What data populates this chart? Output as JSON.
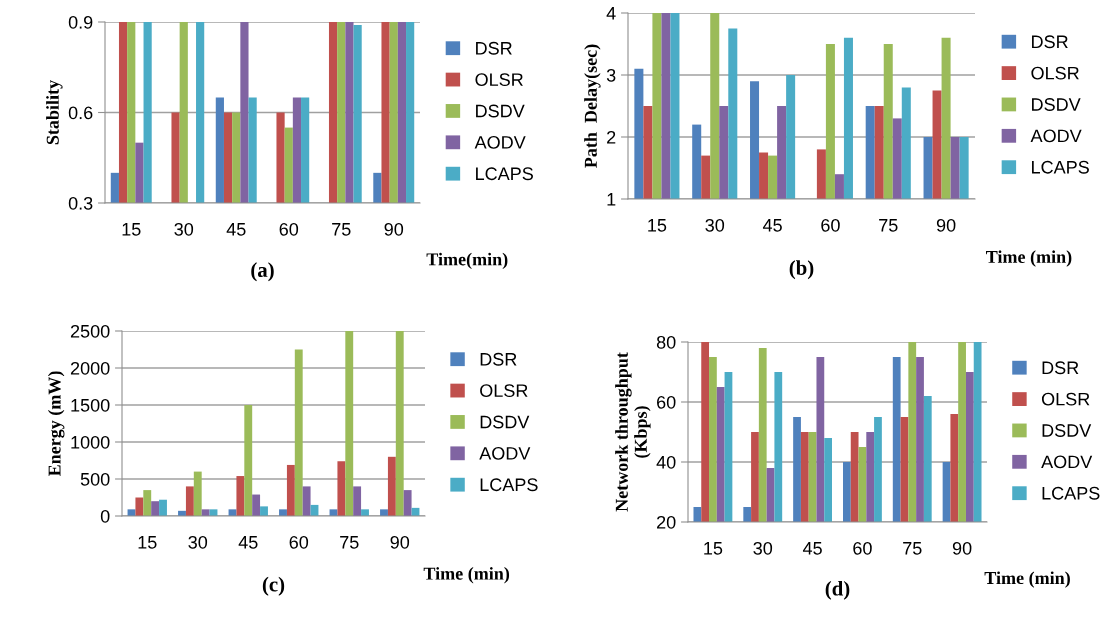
{
  "chart_data": [
    {
      "type": "bar",
      "ylabel": "Stability",
      "xlabel": "Time(min)",
      "annotations": [
        "(a)"
      ],
      "categories": [
        "15",
        "30",
        "45",
        "60",
        "75",
        "90"
      ],
      "ylim": [
        0.3,
        0.9
      ],
      "yticks": [
        0.3,
        0.6,
        0.9
      ],
      "grid": "y",
      "legend": "right",
      "series": [
        {
          "name": "DSR",
          "color": "#4f81bd",
          "values": [
            0.4,
            null,
            0.65,
            null,
            null,
            0.4
          ]
        },
        {
          "name": "OLSR",
          "color": "#c0504d",
          "values": [
            0.9,
            0.6,
            0.6,
            0.6,
            0.9,
            0.9
          ]
        },
        {
          "name": "DSDV",
          "color": "#9bbb59",
          "values": [
            0.9,
            0.9,
            0.6,
            0.55,
            0.9,
            0.9
          ]
        },
        {
          "name": "AODV",
          "color": "#8064a2",
          "values": [
            0.5,
            null,
            0.9,
            0.65,
            0.9,
            0.9
          ]
        },
        {
          "name": "LCAPS",
          "color": "#4bacc6",
          "values": [
            0.9,
            0.9,
            0.65,
            0.65,
            0.89,
            0.9
          ]
        }
      ]
    },
    {
      "type": "bar",
      "ylabel": "Path  Delay(sec)",
      "xlabel": "Time (min)",
      "annotations": [
        "(b)"
      ],
      "categories": [
        "15",
        "30",
        "45",
        "60",
        "75",
        "90"
      ],
      "ylim": [
        1,
        4
      ],
      "yticks": [
        1,
        2,
        3,
        4
      ],
      "grid": "y",
      "legend": "right",
      "series": [
        {
          "name": "DSR",
          "color": "#4f81bd",
          "values": [
            3.1,
            2.2,
            2.9,
            null,
            2.5,
            2.0
          ]
        },
        {
          "name": "OLSR",
          "color": "#c0504d",
          "values": [
            2.5,
            1.7,
            1.75,
            1.8,
            2.5,
            2.75
          ]
        },
        {
          "name": "DSDV",
          "color": "#9bbb59",
          "values": [
            4,
            4,
            1.7,
            3.5,
            3.5,
            3.6
          ]
        },
        {
          "name": "AODV",
          "color": "#8064a2",
          "values": [
            4,
            2.5,
            2.5,
            1.4,
            2.3,
            2.0
          ]
        },
        {
          "name": "LCAPS",
          "color": "#4bacc6",
          "values": [
            4,
            3.75,
            3.0,
            3.6,
            2.8,
            2.0
          ]
        }
      ]
    },
    {
      "type": "bar",
      "ylabel": "Energy (mW)",
      "xlabel": "Time (min)",
      "annotations": [
        "(c)"
      ],
      "categories": [
        "15",
        "30",
        "45",
        "60",
        "75",
        "90"
      ],
      "ylim": [
        0,
        2500
      ],
      "yticks": [
        0,
        500,
        1000,
        1500,
        2000,
        2500
      ],
      "grid": "y",
      "legend": "right",
      "series": [
        {
          "name": "DSR",
          "color": "#4f81bd",
          "values": [
            90,
            70,
            90,
            90,
            90,
            90
          ]
        },
        {
          "name": "OLSR",
          "color": "#c0504d",
          "values": [
            250,
            400,
            540,
            690,
            740,
            800
          ]
        },
        {
          "name": "DSDV",
          "color": "#9bbb59",
          "values": [
            350,
            600,
            1500,
            2250,
            2500,
            2500
          ]
        },
        {
          "name": "AODV",
          "color": "#8064a2",
          "values": [
            200,
            90,
            290,
            400,
            400,
            350
          ]
        },
        {
          "name": "LCAPS",
          "color": "#4bacc6",
          "values": [
            220,
            90,
            130,
            150,
            90,
            110
          ]
        }
      ]
    },
    {
      "type": "bar",
      "ylabel": "Network throughput\n(Kbps)",
      "xlabel": "Time (min)",
      "annotations": [
        "(d)"
      ],
      "categories": [
        "15",
        "30",
        "45",
        "60",
        "75",
        "90"
      ],
      "ylim": [
        20,
        80
      ],
      "yticks": [
        20,
        40,
        60,
        80
      ],
      "grid": "y",
      "legend": "right",
      "series": [
        {
          "name": "DSR",
          "color": "#4f81bd",
          "values": [
            25,
            25,
            55,
            40,
            75,
            40
          ]
        },
        {
          "name": "OLSR",
          "color": "#c0504d",
          "values": [
            80,
            50,
            50,
            50,
            55,
            56
          ]
        },
        {
          "name": "DSDV",
          "color": "#9bbb59",
          "values": [
            75,
            78,
            50,
            45,
            80,
            80
          ]
        },
        {
          "name": "AODV",
          "color": "#8064a2",
          "values": [
            65,
            38,
            75,
            50,
            75,
            70
          ]
        },
        {
          "name": "LCAPS",
          "color": "#4bacc6",
          "values": [
            70,
            70,
            48,
            55,
            62,
            80
          ]
        }
      ]
    }
  ]
}
